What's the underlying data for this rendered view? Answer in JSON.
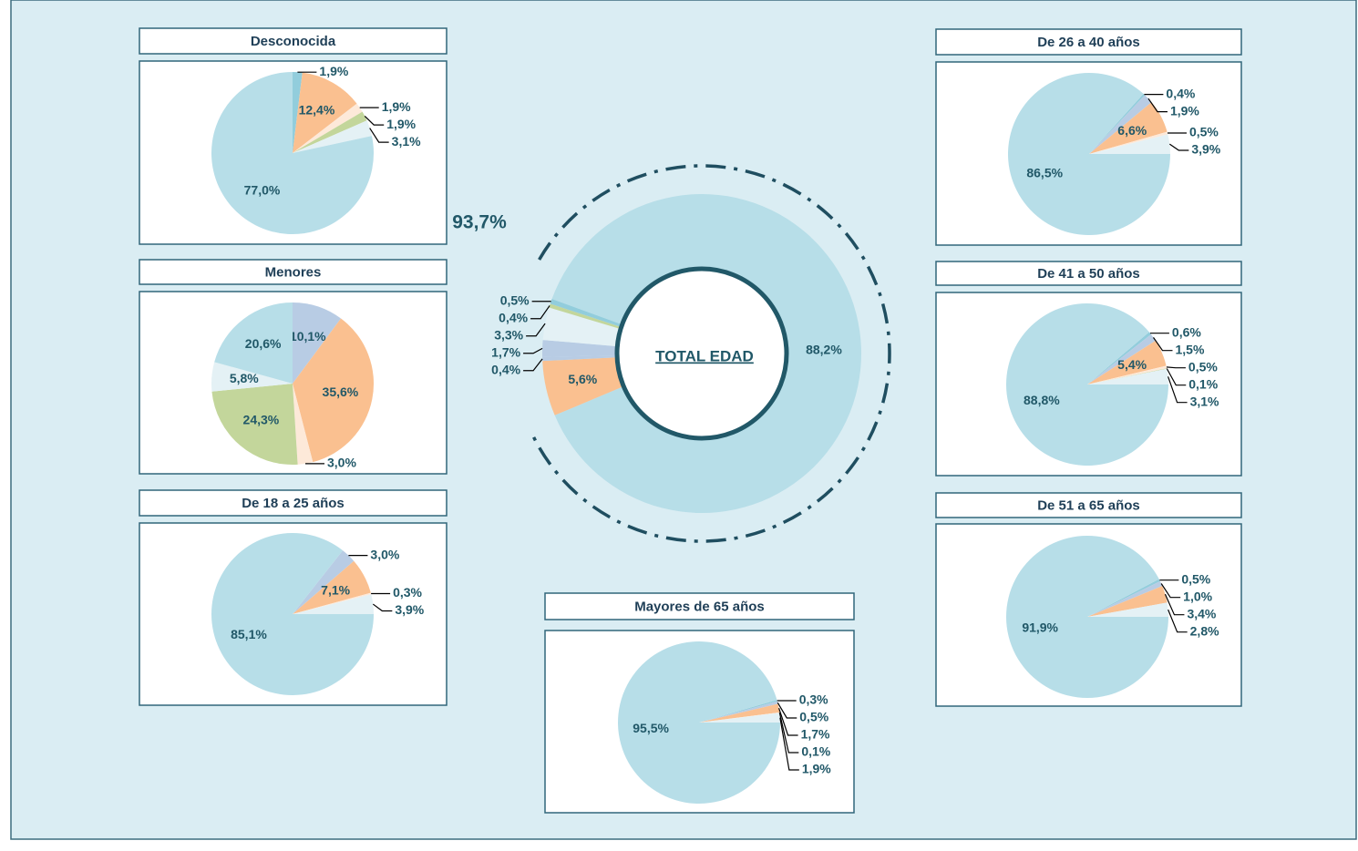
{
  "chart_data": [
    {
      "type": "pie",
      "title": "Desconocida",
      "values": [
        1.9,
        12.4,
        1.9,
        1.9,
        3.1,
        77.0
      ],
      "value_labels": [
        "1,9%",
        "12,4%",
        "1,9%",
        "1,9%",
        "3,1%",
        "77,0%"
      ],
      "colors": [
        "#92cddc",
        "#fac090",
        "#fde9d9",
        "#c3d69b",
        "#e4f1f5",
        "#b7dee8"
      ]
    },
    {
      "type": "pie",
      "title": "Menores",
      "values": [
        10.1,
        35.6,
        3.0,
        24.3,
        5.8,
        20.6
      ],
      "value_labels": [
        "10,1%",
        "35,6%",
        "3,0%",
        "24,3%",
        "5,8%",
        "20,6%"
      ],
      "colors": [
        "#b8cce4",
        "#fac090",
        "#fde9d9",
        "#c3d69b",
        "#e4f1f5",
        "#b7dee8"
      ]
    },
    {
      "type": "pie",
      "title": "De 18 a 25 años",
      "values": [
        3.0,
        7.1,
        0.3,
        3.9,
        85.1
      ],
      "value_labels": [
        "3,0%",
        "7,1%",
        "0,3%",
        "3,9%",
        "85,1%"
      ],
      "colors": [
        "#b8cce4",
        "#fac090",
        "#fde9d9",
        "#e4f1f5",
        "#b7dee8"
      ]
    },
    {
      "type": "pie",
      "title": "De 26 a 40 años",
      "values": [
        0.4,
        1.9,
        6.6,
        0.5,
        3.9,
        86.5
      ],
      "value_labels": [
        "0,4%",
        "1,9%",
        "6,6%",
        "0,5%",
        "3,9%",
        "86,5%"
      ],
      "colors": [
        "#92cddc",
        "#b8cce4",
        "#fac090",
        "#fde9d9",
        "#e4f1f5",
        "#b7dee8"
      ]
    },
    {
      "type": "pie",
      "title": "De 41 a 50 años",
      "values": [
        0.6,
        1.5,
        5.4,
        0.5,
        0.1,
        3.1,
        88.8
      ],
      "value_labels": [
        "0,6%",
        "1,5%",
        "5,4%",
        "0,5%",
        "0,1%",
        "3,1%",
        "88,8%"
      ],
      "colors": [
        "#92cddc",
        "#b8cce4",
        "#fac090",
        "#fde9d9",
        "#c3d69b",
        "#e4f1f5",
        "#b7dee8"
      ]
    },
    {
      "type": "pie",
      "title": "De 51 a 65 años",
      "values": [
        0.5,
        1.0,
        3.4,
        2.8,
        91.9
      ],
      "value_labels": [
        "0,5%",
        "1,0%",
        "3,4%",
        "2,8%",
        "91,9%"
      ],
      "colors": [
        "#92cddc",
        "#b8cce4",
        "#fac090",
        "#e4f1f5",
        "#b7dee8"
      ]
    },
    {
      "type": "pie",
      "title": "Mayores de 65 años",
      "values": [
        0.3,
        0.5,
        1.7,
        0.1,
        1.9,
        95.5
      ],
      "value_labels": [
        "0,3%",
        "0,5%",
        "1,7%",
        "0,1%",
        "1,9%",
        "95,5%"
      ],
      "colors": [
        "#92cddc",
        "#b8cce4",
        "#fac090",
        "#fde9d9",
        "#e4f1f5",
        "#b7dee8"
      ]
    },
    {
      "type": "donut",
      "title": "TOTAL EDAD",
      "annotation": "93,7%",
      "values": [
        88.2,
        5.6,
        0.4,
        1.7,
        3.3,
        0.4,
        0.5
      ],
      "value_labels": [
        "88,2%",
        "5,6%",
        "0,4%",
        "1,7%",
        "3,3%",
        "0,4%",
        "0,5%"
      ],
      "colors": [
        "#b7dee8",
        "#fac090",
        "#b8cce4",
        "#b8cce4",
        "#e4f1f5",
        "#c3d69b",
        "#92cddc"
      ]
    }
  ]
}
